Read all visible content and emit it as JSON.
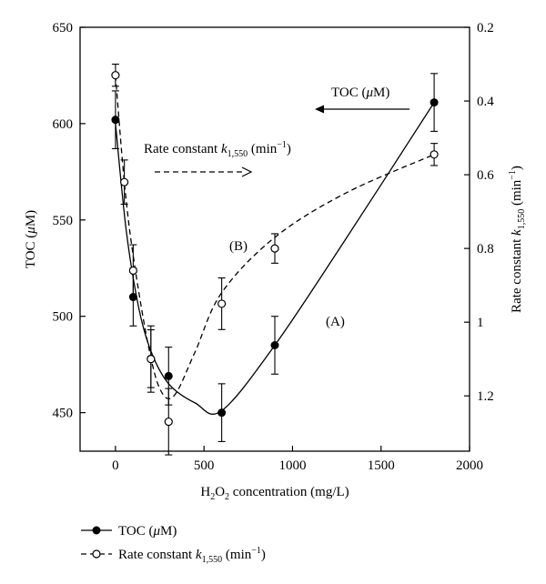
{
  "chart_data": {
    "type": "scatter",
    "xlabel_main": "H",
    "xlabel_sub1": "2",
    "xlabel_mid": "O",
    "xlabel_sub2": "2",
    "xlabel_tail": " concentration (mg/L)",
    "xlim": [
      -200,
      2000
    ],
    "xticks": [
      "0",
      "500",
      "1000",
      "1500",
      "2000"
    ],
    "y_left": {
      "label_pre": "TOC (",
      "label_mu": "μ",
      "label_post": "M)",
      "lim": [
        430,
        650
      ],
      "ticks": [
        "450",
        "500",
        "550",
        "600",
        "650"
      ]
    },
    "y_right": {
      "label_pre": "Rate constant ",
      "label_k": "k",
      "label_sub": "1,550",
      "label_post": " (min",
      "label_sup": "−1",
      "label_end": ")",
      "lim": [
        1.35,
        0.2
      ],
      "ticks": [
        "0.2",
        "0.4",
        "0.6",
        "0.8",
        "1",
        "1.2"
      ]
    },
    "series": [
      {
        "name": "TOC (μM)",
        "axis": "left",
        "marker": "filled-circle",
        "line": "solid",
        "x": [
          0,
          100,
          200,
          300,
          600,
          900,
          1800
        ],
        "y": [
          602,
          510,
          478,
          469,
          450,
          485,
          611
        ],
        "err": [
          15,
          15,
          15,
          15,
          15,
          15,
          15
        ]
      },
      {
        "name": "Rate constant k1,550 (min−1)",
        "axis": "right",
        "marker": "open-circle",
        "line": "dashed",
        "x": [
          0,
          50,
          100,
          200,
          300,
          600,
          900,
          1800
        ],
        "y": [
          0.33,
          0.62,
          0.86,
          1.1,
          1.27,
          0.95,
          0.8,
          0.545
        ],
        "err": [
          0.03,
          0.06,
          0.07,
          0.09,
          0.09,
          0.07,
          0.04,
          0.03
        ]
      }
    ],
    "annotations": {
      "curve_a": "(A)",
      "curve_b": "(B)",
      "toc_arrow_pre": "TOC (",
      "toc_arrow_mu": "μ",
      "toc_arrow_post": "M)",
      "rate_arrow_pre": "Rate constant ",
      "rate_arrow_k": "k",
      "rate_arrow_sub": "1,550",
      "rate_arrow_post": " (min",
      "rate_arrow_sup": "−1",
      "rate_arrow_end": ")"
    },
    "legend": {
      "position": "bottom",
      "toc_pre": "TOC (",
      "toc_mu": "μ",
      "toc_post": "M)",
      "rate_pre": "Rate constant ",
      "rate_k": "k",
      "rate_sub": "1,550",
      "rate_post": " (min",
      "rate_sup": "−1",
      "rate_end": ")"
    },
    "grid": false
  }
}
